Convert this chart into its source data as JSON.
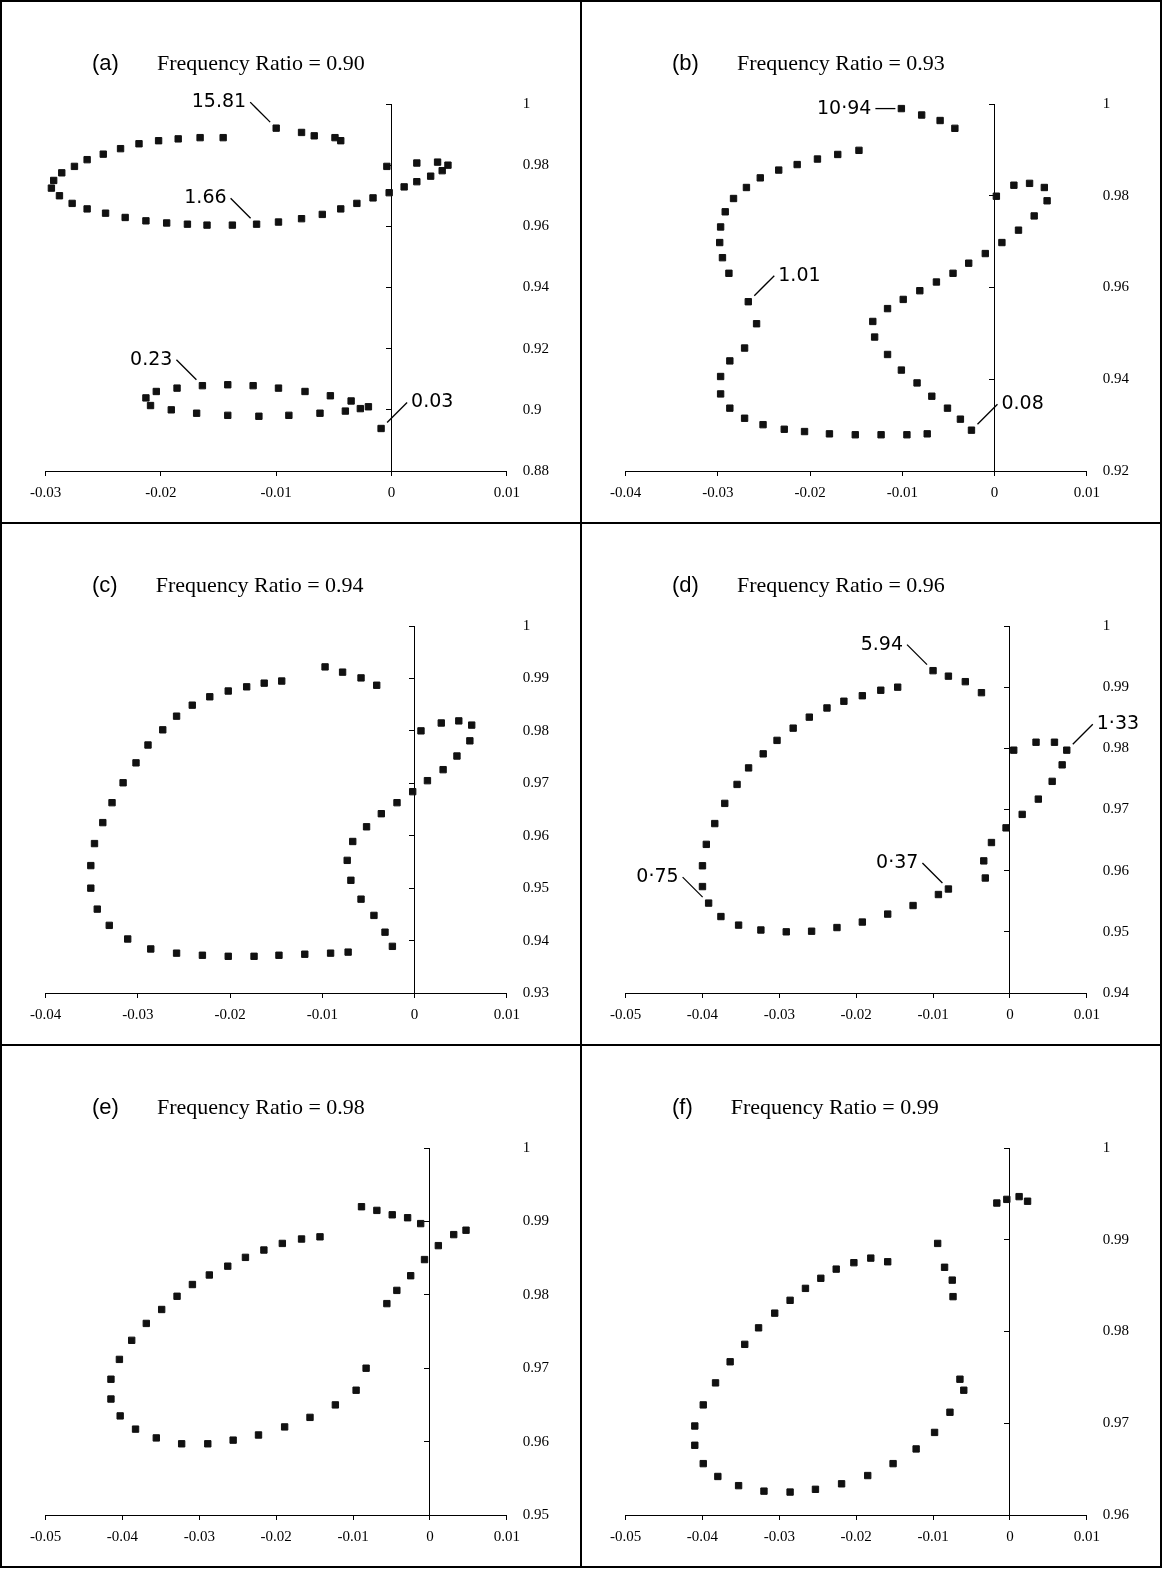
{
  "chart_data": [
    {
      "type": "scatter",
      "title": "(a)",
      "subtitle": "Frequency Ratio = 0.90",
      "color": "#111111",
      "marker": "square",
      "xlim": [
        -0.03,
        0.01
      ],
      "xticks": [
        -0.03,
        -0.02,
        -0.01,
        0,
        0.01
      ],
      "ylim": [
        0.88,
        1
      ],
      "yticks": [
        0.88,
        0.9,
        0.92,
        0.94,
        0.96,
        0.98,
        1
      ],
      "x": [
        -0.01,
        -0.0078,
        -0.0067,
        -0.0049,
        -0.0044,
        -0.0146,
        -0.0166,
        -0.0185,
        -0.0202,
        -0.0219,
        -0.0235,
        -0.025,
        -0.0264,
        -0.0275,
        -0.0286,
        -0.0293,
        -0.0295,
        -0.0288,
        -0.0277,
        -0.0264,
        -0.0248,
        -0.0231,
        -0.0213,
        -0.0195,
        -0.0177,
        -0.016,
        -0.0138,
        -0.0117,
        -0.0098,
        -0.0078,
        -0.006,
        -0.0044,
        -0.003,
        -0.0016,
        -0.0002,
        0.0011,
        0.0022,
        0.0034,
        0.0044,
        0.0049,
        0.004,
        0.0022,
        -0.0004,
        -0.0009,
        -0.002,
        -0.0035,
        -0.0053,
        -0.0075,
        -0.0098,
        -0.012,
        -0.0142,
        -0.0164,
        -0.0186,
        -0.0204,
        -0.0213,
        -0.0209,
        -0.0191,
        -0.0169,
        -0.0142,
        -0.0115,
        -0.0089,
        -0.0062,
        -0.004,
        -0.0027
      ],
      "values": [
        0.9921,
        0.9907,
        0.9896,
        0.989,
        0.988,
        0.989,
        0.989,
        0.9886,
        0.988,
        0.987,
        0.9854,
        0.9836,
        0.9818,
        0.9796,
        0.9775,
        0.975,
        0.9725,
        0.97,
        0.9675,
        0.9657,
        0.9643,
        0.9629,
        0.9618,
        0.9611,
        0.9607,
        0.9604,
        0.9604,
        0.9607,
        0.9614,
        0.9625,
        0.9639,
        0.9657,
        0.9675,
        0.9693,
        0.971,
        0.9729,
        0.9746,
        0.9764,
        0.9782,
        0.98,
        0.981,
        0.9807,
        0.9796,
        0.8939,
        0.901,
        0.9029,
        0.9046,
        0.906,
        0.9071,
        0.9079,
        0.9082,
        0.9079,
        0.9071,
        0.906,
        0.9039,
        0.9014,
        0.9,
        0.8989,
        0.8982,
        0.8979,
        0.8982,
        0.8989,
        0.8996,
        0.9004
      ],
      "annotations": [
        {
          "text": "15.81",
          "x": -0.01,
          "y": 0.9921
        },
        {
          "text": "1.66",
          "x": -0.0117,
          "y": 0.9607
        },
        {
          "text": "0.23",
          "x": -0.0164,
          "y": 0.9079
        },
        {
          "text": "0.03",
          "x": -0.0009,
          "y": 0.8939
        }
      ]
    },
    {
      "type": "scatter",
      "title": "(b)",
      "subtitle": "Frequency Ratio = 0.93",
      "color": "#111111",
      "marker": "square",
      "xlim": [
        -0.04,
        0.01
      ],
      "xticks": [
        -0.04,
        -0.03,
        -0.02,
        -0.01,
        0,
        0.01
      ],
      "ylim": [
        0.92,
        1
      ],
      "yticks": [
        0.92,
        0.94,
        0.96,
        0.98,
        1
      ],
      "x": [
        -0.0101,
        -0.0079,
        -0.0059,
        -0.0043,
        -0.0147,
        -0.017,
        -0.0192,
        -0.0214,
        -0.0234,
        -0.0254,
        -0.0269,
        -0.0283,
        -0.0292,
        -0.0297,
        -0.0298,
        -0.0295,
        -0.0288,
        -0.0267,
        -0.0258,
        -0.0271,
        -0.0287,
        -0.0297,
        -0.0297,
        -0.0287,
        -0.0271,
        -0.0251,
        -0.0228,
        -0.0206,
        -0.0179,
        -0.0151,
        -0.0123,
        -0.0095,
        -0.0073,
        -0.0025,
        -0.0037,
        -0.0051,
        -0.0068,
        -0.0084,
        -0.0101,
        -0.0116,
        -0.013,
        -0.0132,
        -0.0116,
        -0.0099,
        -0.0081,
        -0.0063,
        -0.0045,
        -0.0028,
        -0.001,
        0.0008,
        0.0026,
        0.0043,
        0.0057,
        0.0054,
        0.0038,
        0.0021,
        0.0002
      ],
      "values": [
        0.999,
        0.9976,
        0.9964,
        0.9947,
        0.9899,
        0.989,
        0.988,
        0.9868,
        0.9856,
        0.9839,
        0.9818,
        0.9794,
        0.9765,
        0.9732,
        0.9698,
        0.9665,
        0.9631,
        0.9569,
        0.9521,
        0.9468,
        0.944,
        0.9406,
        0.9368,
        0.9337,
        0.9315,
        0.9301,
        0.9291,
        0.9286,
        0.9281,
        0.9279,
        0.9279,
        0.9279,
        0.9281,
        0.9289,
        0.9313,
        0.9337,
        0.9363,
        0.9392,
        0.942,
        0.9454,
        0.9492,
        0.9526,
        0.9554,
        0.9574,
        0.9593,
        0.9612,
        0.9631,
        0.9653,
        0.9674,
        0.9698,
        0.9725,
        0.9756,
        0.9789,
        0.9818,
        0.9827,
        0.9823,
        0.9799
      ],
      "annotations": [
        {
          "text": "10·94",
          "x": -0.0101,
          "y": 0.999
        },
        {
          "text": "1.01",
          "x": -0.0267,
          "y": 0.9569
        },
        {
          "text": "0.08",
          "x": -0.0025,
          "y": 0.9289
        }
      ]
    },
    {
      "type": "scatter",
      "title": "(c)",
      "subtitle": "Frequency Ratio = 0.94",
      "color": "#111111",
      "marker": "square",
      "xlim": [
        -0.04,
        0.01
      ],
      "xticks": [
        -0.04,
        -0.03,
        -0.02,
        -0.01,
        0,
        0.01
      ],
      "ylim": [
        0.93,
        1
      ],
      "yticks": [
        0.93,
        0.94,
        0.95,
        0.96,
        0.97,
        0.98,
        0.99,
        1
      ],
      "x": [
        -0.0097,
        -0.0078,
        -0.0058,
        -0.0041,
        -0.0144,
        -0.0163,
        -0.0182,
        -0.0202,
        -0.0222,
        -0.0241,
        -0.0258,
        -0.0273,
        -0.0289,
        -0.0302,
        -0.0316,
        -0.0328,
        -0.0338,
        -0.0347,
        -0.0351,
        -0.0351,
        -0.0344,
        -0.0331,
        -0.0311,
        -0.0286,
        -0.0258,
        -0.023,
        -0.0202,
        -0.0174,
        -0.0147,
        -0.0119,
        -0.0091,
        -0.0072,
        -0.0024,
        -0.0032,
        -0.0044,
        -0.0058,
        -0.0069,
        -0.0073,
        -0.0067,
        -0.0052,
        -0.0036,
        -0.0019,
        -0.0002,
        0.0014,
        0.0031,
        0.0046,
        0.006,
        0.0062,
        0.0048,
        0.0029,
        0.0007
      ],
      "values": [
        0.9922,
        0.9912,
        0.9901,
        0.9887,
        0.9895,
        0.9891,
        0.9884,
        0.9876,
        0.9865,
        0.9849,
        0.9828,
        0.9802,
        0.9773,
        0.9739,
        0.9701,
        0.9663,
        0.9625,
        0.9585,
        0.9543,
        0.95,
        0.946,
        0.9429,
        0.9403,
        0.9384,
        0.9376,
        0.9372,
        0.937,
        0.937,
        0.9372,
        0.9374,
        0.9376,
        0.9378,
        0.9389,
        0.9416,
        0.9448,
        0.9479,
        0.9515,
        0.9553,
        0.9589,
        0.9617,
        0.9642,
        0.9663,
        0.9684,
        0.9705,
        0.9726,
        0.9752,
        0.9781,
        0.9811,
        0.9819,
        0.9815,
        0.98
      ]
    },
    {
      "type": "scatter",
      "title": "(d)",
      "subtitle": "Frequency Ratio = 0.96",
      "color": "#111111",
      "marker": "square",
      "xlim": [
        -0.05,
        0.01
      ],
      "xticks": [
        -0.05,
        -0.04,
        -0.03,
        -0.02,
        -0.01,
        0,
        0.01
      ],
      "ylim": [
        0.94,
        1
      ],
      "yticks": [
        0.94,
        0.95,
        0.96,
        0.97,
        0.98,
        0.99,
        1
      ],
      "x": [
        -0.01,
        -0.008,
        -0.0058,
        -0.0037,
        -0.0146,
        -0.0168,
        -0.0192,
        -0.0216,
        -0.0238,
        -0.0261,
        -0.0282,
        -0.0303,
        -0.0321,
        -0.034,
        -0.0355,
        -0.0371,
        -0.0384,
        -0.0395,
        -0.04,
        -0.04,
        -0.0392,
        -0.0376,
        -0.0353,
        -0.0324,
        -0.0291,
        -0.0258,
        -0.0225,
        -0.0192,
        -0.0159,
        -0.0126,
        -0.0093,
        -0.008,
        -0.0032,
        -0.0034,
        -0.0024,
        -0.0005,
        0.0016,
        0.0037,
        0.0055,
        0.0068,
        0.0074,
        0.0058,
        0.0034,
        0.0005
      ],
      "values": [
        0.9927,
        0.9918,
        0.9909,
        0.9891,
        0.99,
        0.9895,
        0.9886,
        0.9877,
        0.9866,
        0.9851,
        0.9833,
        0.9813,
        0.9791,
        0.9768,
        0.9741,
        0.971,
        0.9677,
        0.9643,
        0.9608,
        0.9574,
        0.9547,
        0.9525,
        0.9511,
        0.9503,
        0.95,
        0.9501,
        0.9507,
        0.9516,
        0.9529,
        0.9543,
        0.9561,
        0.957,
        0.9588,
        0.9616,
        0.9646,
        0.967,
        0.9692,
        0.9717,
        0.9746,
        0.9773,
        0.9797,
        0.981,
        0.981,
        0.9797
      ],
      "annotations": [
        {
          "text": "5.94",
          "x": -0.01,
          "y": 0.9927
        },
        {
          "text": "1·33",
          "x": 0.0074,
          "y": 0.9797
        },
        {
          "text": "0·75",
          "x": -0.0392,
          "y": 0.9547
        },
        {
          "text": "0·37",
          "x": -0.008,
          "y": 0.957
        }
      ]
    },
    {
      "type": "scatter",
      "title": "(e)",
      "subtitle": "Frequency Ratio = 0.98",
      "color": "#111111",
      "marker": "square",
      "xlim": [
        -0.05,
        0.01
      ],
      "xticks": [
        -0.05,
        -0.04,
        -0.03,
        -0.02,
        -0.01,
        0,
        0.01
      ],
      "ylim": [
        0.95,
        1
      ],
      "yticks": [
        0.95,
        0.96,
        0.97,
        0.98,
        0.99,
        1
      ],
      "x": [
        -0.0089,
        -0.0069,
        -0.0049,
        -0.0029,
        -0.0012,
        -0.0143,
        -0.0167,
        -0.0192,
        -0.0216,
        -0.024,
        -0.0263,
        -0.0287,
        -0.0309,
        -0.0329,
        -0.0349,
        -0.0369,
        -0.0388,
        -0.0404,
        -0.0415,
        -0.0415,
        -0.0403,
        -0.0383,
        -0.0356,
        -0.0323,
        -0.0289,
        -0.0256,
        -0.0223,
        -0.0189,
        -0.0156,
        -0.0123,
        -0.0096,
        -0.0083,
        -0.0056,
        -0.0043,
        -0.0025,
        -0.0007,
        0.0011,
        0.0031,
        0.0047
      ],
      "values": [
        0.992,
        0.9915,
        0.9909,
        0.9905,
        0.9897,
        0.9879,
        0.9876,
        0.987,
        0.9861,
        0.9851,
        0.9839,
        0.9827,
        0.9814,
        0.9798,
        0.978,
        0.9761,
        0.9738,
        0.9712,
        0.9685,
        0.9658,
        0.9635,
        0.9617,
        0.9605,
        0.9597,
        0.9597,
        0.9602,
        0.9609,
        0.962,
        0.9633,
        0.965,
        0.967,
        0.97,
        0.9788,
        0.9806,
        0.9826,
        0.9848,
        0.9867,
        0.9882,
        0.9888
      ]
    },
    {
      "type": "scatter",
      "title": "(f)",
      "subtitle": "Frequency Ratio = 0.99",
      "color": "#111111",
      "marker": "square",
      "xlim": [
        -0.05,
        0.01
      ],
      "xticks": [
        -0.05,
        -0.04,
        -0.03,
        -0.02,
        -0.01,
        0,
        0.01
      ],
      "ylim": [
        0.96,
        1
      ],
      "yticks": [
        0.96,
        0.97,
        0.98,
        0.99,
        1
      ],
      "x": [
        -0.0017,
        -0.0004,
        0.0012,
        0.0023,
        -0.0094,
        -0.0085,
        -0.0075,
        -0.0074,
        -0.0159,
        -0.0181,
        -0.0203,
        -0.0226,
        -0.0246,
        -0.0266,
        -0.0286,
        -0.0306,
        -0.0327,
        -0.0345,
        -0.0364,
        -0.0383,
        -0.0399,
        -0.041,
        -0.041,
        -0.0399,
        -0.038,
        -0.0353,
        -0.032,
        -0.0286,
        -0.0253,
        -0.0219,
        -0.0185,
        -0.0152,
        -0.0122,
        -0.0098,
        -0.0078,
        -0.006,
        -0.0065
      ],
      "values": [
        0.994,
        0.9944,
        0.9947,
        0.9942,
        0.9896,
        0.987,
        0.9856,
        0.9838,
        0.9876,
        0.988,
        0.9875,
        0.9868,
        0.9858,
        0.9847,
        0.9834,
        0.982,
        0.9804,
        0.9786,
        0.9767,
        0.9744,
        0.972,
        0.9697,
        0.9676,
        0.9656,
        0.9642,
        0.9632,
        0.9626,
        0.9625,
        0.9628,
        0.9634,
        0.9643,
        0.9656,
        0.9672,
        0.969,
        0.9712,
        0.9736,
        0.9748
      ]
    }
  ]
}
